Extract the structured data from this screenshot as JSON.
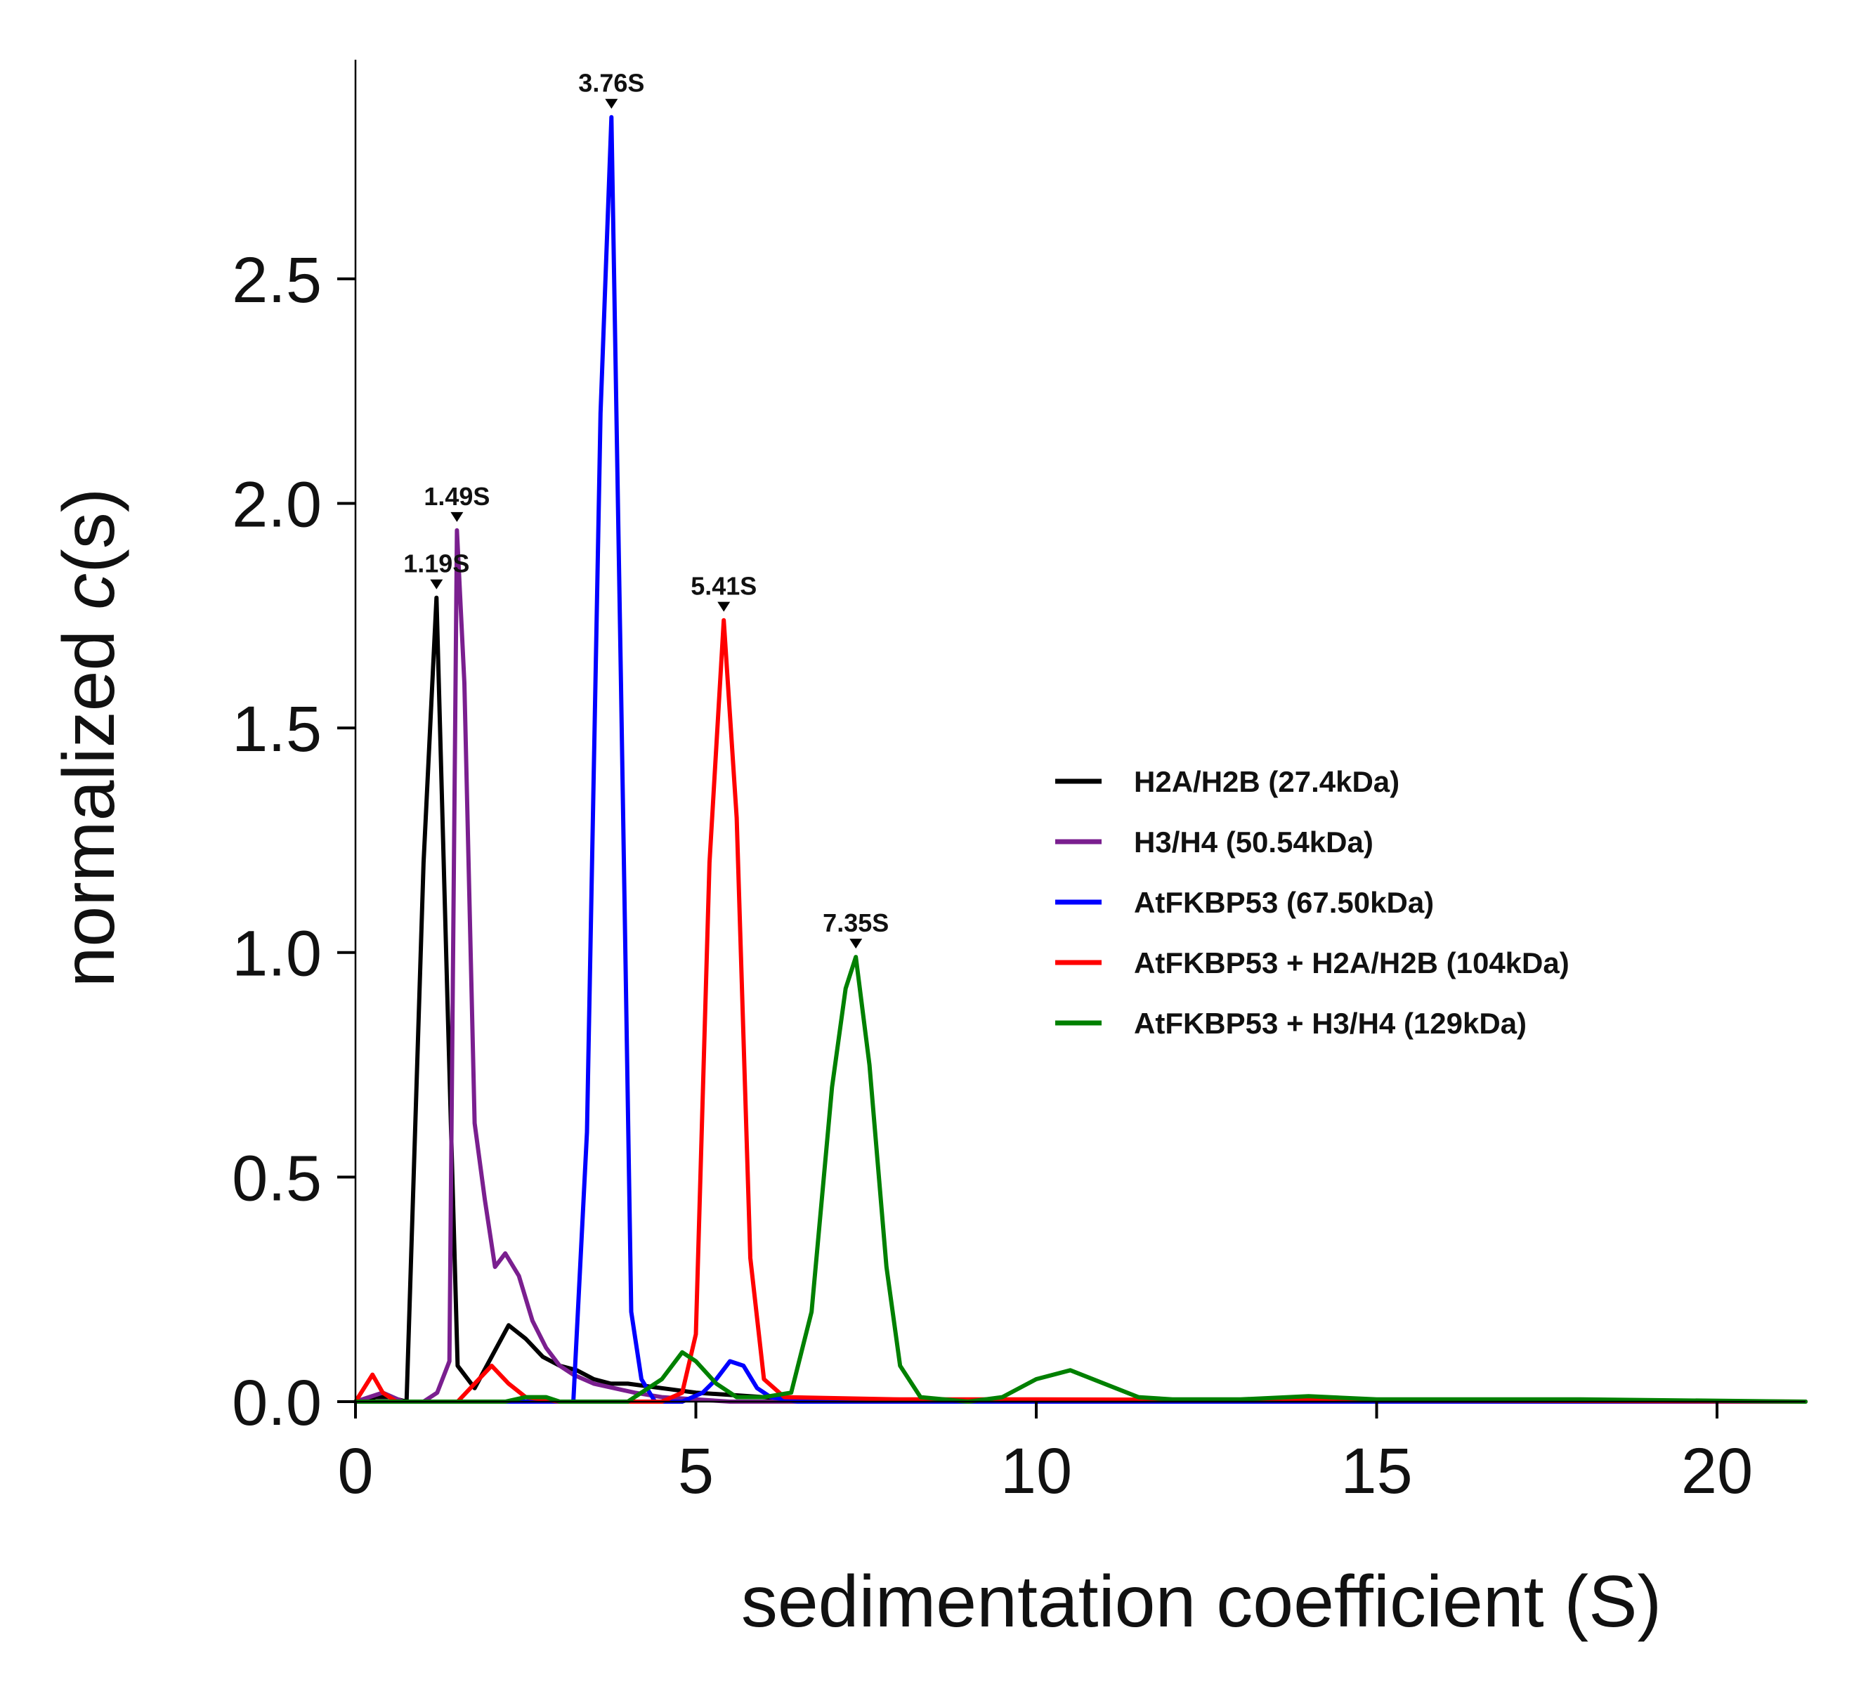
{
  "chart_data": {
    "type": "line",
    "title": "",
    "xlabel": "sedimentation coefficient (S)",
    "ylabel_prefix": "normalized ",
    "ylabel_italic": "c",
    "ylabel_suffix": "(s)",
    "xlim": [
      0,
      21.3
    ],
    "ylim": [
      0,
      2.98
    ],
    "xticks": [
      0,
      5,
      10,
      15,
      20
    ],
    "xtick_labels": [
      "0",
      "5",
      "10",
      "15",
      "20"
    ],
    "yticks": [
      0.0,
      0.5,
      1.0,
      1.5,
      2.0,
      2.5
    ],
    "ytick_labels": [
      "0.0",
      "0.5",
      "1.0",
      "1.5",
      "2.0",
      "2.5"
    ],
    "grid": false,
    "legend_position": "right",
    "series": [
      {
        "name": "H2A/H2B (27.4kDa)",
        "color": "#000000",
        "x": [
          0,
          0.3,
          0.5,
          0.75,
          1.0,
          1.19,
          1.35,
          1.5,
          1.75,
          2.0,
          2.25,
          2.5,
          2.75,
          3.0,
          3.25,
          3.5,
          3.75,
          4.0,
          4.25,
          4.5,
          5.0,
          5.5,
          6.0,
          6.5,
          7.0,
          21.3
        ],
        "y": [
          0,
          0.01,
          0.01,
          0.0,
          1.2,
          1.79,
          0.9,
          0.08,
          0.03,
          0.1,
          0.17,
          0.14,
          0.1,
          0.08,
          0.07,
          0.05,
          0.04,
          0.04,
          0.035,
          0.03,
          0.02,
          0.015,
          0.01,
          0.005,
          0,
          0
        ]
      },
      {
        "name": "H3/H4 (50.54kDa)",
        "color": "#7a1f8f",
        "x": [
          0,
          0.2,
          0.4,
          0.7,
          1.0,
          1.2,
          1.38,
          1.49,
          1.6,
          1.75,
          1.9,
          2.05,
          2.2,
          2.4,
          2.6,
          2.8,
          3.0,
          3.2,
          3.5,
          3.8,
          4.1,
          4.5,
          5.0,
          5.5,
          6.0,
          21.3
        ],
        "y": [
          0,
          0.01,
          0.02,
          0.0,
          0.0,
          0.02,
          0.09,
          1.94,
          1.6,
          0.62,
          0.45,
          0.3,
          0.33,
          0.28,
          0.18,
          0.12,
          0.08,
          0.06,
          0.04,
          0.03,
          0.02,
          0.01,
          0.005,
          0,
          0,
          0
        ]
      },
      {
        "name": "AtFKBP53 (67.50kDa)",
        "color": "#0000ff",
        "x": [
          0,
          3.2,
          3.4,
          3.6,
          3.76,
          3.9,
          4.05,
          4.2,
          4.4,
          4.8,
          5.1,
          5.3,
          5.5,
          5.7,
          5.9,
          6.1,
          6.5,
          21.3
        ],
        "y": [
          0,
          0,
          0.6,
          2.2,
          2.86,
          1.6,
          0.2,
          0.05,
          0.0,
          0.0,
          0.02,
          0.05,
          0.09,
          0.08,
          0.03,
          0.01,
          0,
          0
        ]
      },
      {
        "name": "AtFKBP53 + H2A/H2B (104kDa)",
        "color": "#ff0000",
        "x": [
          0,
          0.25,
          0.4,
          0.6,
          0.8,
          1.0,
          1.5,
          1.75,
          2.0,
          2.25,
          2.5,
          3.0,
          3.5,
          4.5,
          4.8,
          5.0,
          5.2,
          5.41,
          5.6,
          5.8,
          6.0,
          6.3,
          8.0,
          10.0,
          15.0,
          21.3
        ],
        "y": [
          0,
          0.06,
          0.02,
          0.0,
          0.0,
          0.0,
          0.0,
          0.04,
          0.08,
          0.04,
          0.01,
          0.0,
          0.0,
          0.0,
          0.02,
          0.15,
          1.2,
          1.74,
          1.3,
          0.32,
          0.05,
          0.01,
          0.005,
          0.005,
          0.003,
          0
        ]
      },
      {
        "name": "AtFKBP53 + H3/H4 (129kDa)",
        "color": "#008000",
        "x": [
          0,
          2.2,
          2.5,
          2.8,
          3.0,
          3.5,
          4.0,
          4.5,
          4.8,
          5.0,
          5.3,
          5.6,
          6.0,
          6.4,
          6.7,
          7.0,
          7.2,
          7.35,
          7.55,
          7.8,
          8.0,
          8.3,
          9.0,
          9.5,
          10.0,
          10.5,
          11.0,
          11.5,
          12.0,
          13.0,
          14.0,
          15.0,
          18.0,
          21.3
        ],
        "y": [
          0,
          0.0,
          0.01,
          0.01,
          0.0,
          0.0,
          0.0,
          0.05,
          0.11,
          0.09,
          0.04,
          0.01,
          0.01,
          0.02,
          0.2,
          0.7,
          0.92,
          0.99,
          0.75,
          0.3,
          0.08,
          0.01,
          0.0,
          0.01,
          0.05,
          0.07,
          0.04,
          0.01,
          0.005,
          0.005,
          0.012,
          0.005,
          0.005,
          0
        ]
      }
    ],
    "annotations": [
      {
        "text": "1.19S",
        "x": 1.19,
        "y": 1.79
      },
      {
        "text": "1.49S",
        "x": 1.49,
        "y": 1.94
      },
      {
        "text": "3.76S",
        "x": 3.76,
        "y": 2.86
      },
      {
        "text": "5.41S",
        "x": 5.41,
        "y": 1.74
      },
      {
        "text": "7.35S",
        "x": 7.35,
        "y": 0.99
      }
    ]
  }
}
